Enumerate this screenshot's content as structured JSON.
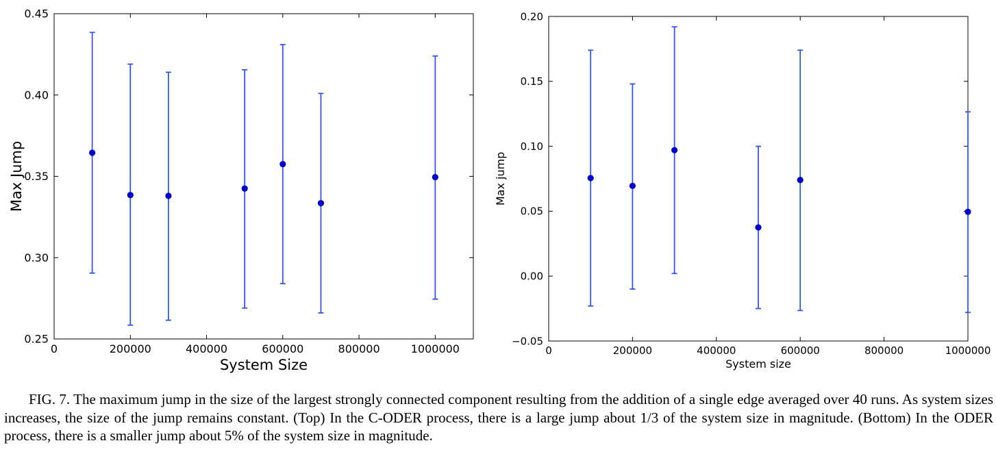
{
  "chart_data": [
    {
      "type": "scatter",
      "error_bars": true,
      "title": "",
      "xlabel": "System Size",
      "ylabel": "Max Jump",
      "xlim": [
        0,
        1100000
      ],
      "ylim": [
        0.25,
        0.45
      ],
      "xticks": [
        0,
        200000,
        400000,
        600000,
        800000,
        1000000
      ],
      "xtick_labels": [
        "0",
        "200000",
        "400000",
        "600000",
        "800000",
        "1000000"
      ],
      "yticks": [
        0.25,
        0.3,
        0.35,
        0.4,
        0.45
      ],
      "ytick_labels": [
        "0.25",
        "0.30",
        "0.35",
        "0.40",
        "0.45"
      ],
      "grid": false,
      "marker_color": "#0000cc",
      "errorbar_color": "#3355ee",
      "points": [
        {
          "x": 100000,
          "y": 0.3645,
          "ylo": 0.2905,
          "yhi": 0.4385
        },
        {
          "x": 200000,
          "y": 0.3385,
          "ylo": 0.2585,
          "yhi": 0.419
        },
        {
          "x": 300000,
          "y": 0.338,
          "ylo": 0.2615,
          "yhi": 0.414
        },
        {
          "x": 500000,
          "y": 0.3425,
          "ylo": 0.269,
          "yhi": 0.4155
        },
        {
          "x": 600000,
          "y": 0.3575,
          "ylo": 0.284,
          "yhi": 0.431
        },
        {
          "x": 700000,
          "y": 0.3335,
          "ylo": 0.266,
          "yhi": 0.401
        },
        {
          "x": 1000000,
          "y": 0.3495,
          "ylo": 0.2745,
          "yhi": 0.424
        }
      ]
    },
    {
      "type": "scatter",
      "error_bars": true,
      "title": "",
      "xlabel": "System size",
      "ylabel": "Max jump",
      "xlim": [
        0,
        1000000
      ],
      "ylim": [
        -0.05,
        0.2
      ],
      "xticks": [
        0,
        200000,
        400000,
        600000,
        800000,
        1000000
      ],
      "xtick_labels": [
        "0",
        "200000",
        "400000",
        "600000",
        "800000",
        "1000000"
      ],
      "yticks": [
        -0.05,
        0.0,
        0.05,
        0.1,
        0.15,
        0.2
      ],
      "ytick_labels": [
        "−0.05",
        "0.00",
        "0.05",
        "0.10",
        "0.15",
        "0.20"
      ],
      "grid": false,
      "marker_color": "#0000cc",
      "errorbar_color": "#3355ee",
      "points": [
        {
          "x": 100000,
          "y": 0.0755,
          "ylo": -0.023,
          "yhi": 0.174
        },
        {
          "x": 200000,
          "y": 0.0695,
          "ylo": -0.01,
          "yhi": 0.148
        },
        {
          "x": 300000,
          "y": 0.097,
          "ylo": 0.002,
          "yhi": 0.192
        },
        {
          "x": 500000,
          "y": 0.0375,
          "ylo": -0.025,
          "yhi": 0.1
        },
        {
          "x": 600000,
          "y": 0.074,
          "ylo": -0.0265,
          "yhi": 0.174
        },
        {
          "x": 1000000,
          "y": 0.0495,
          "ylo": -0.028,
          "yhi": 0.1265
        }
      ]
    }
  ],
  "caption": {
    "text": "FIG. 7.  The maximum jump in the size of the largest strongly connected component resulting from the addition of a single edge averaged over 40 runs. As system sizes increases, the size of the jump remains constant. (Top) In the C-ODER process, there is a large jump about 1/3 of the system size in magnitude. (Bottom) In the ODER process, there is a smaller jump about 5% of the system size in magnitude."
  }
}
